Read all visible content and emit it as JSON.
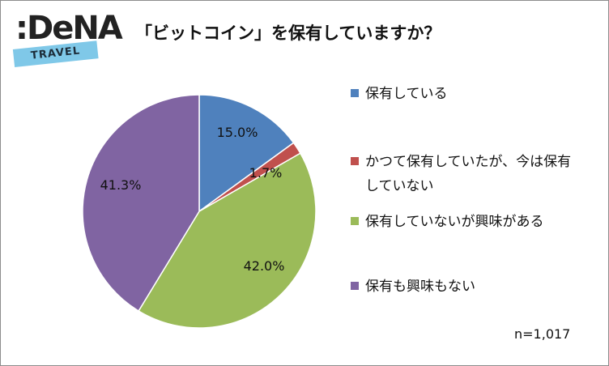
{
  "logo": {
    "main": ":DeNA",
    "sub": "TRAVEL"
  },
  "chart_data": {
    "type": "pie",
    "title": "「ビットコイン」を保有していますか？",
    "slices": [
      {
        "label": "保有している",
        "value": 15.0,
        "value_label": "15.0%",
        "color": "#4f81bd"
      },
      {
        "label": "かつて保有していたが、今は保有していない",
        "value": 1.7,
        "value_label": "1.7%",
        "color": "#c0504d"
      },
      {
        "label": "保有していないが興味がある",
        "value": 42.0,
        "value_label": "42.0%",
        "color": "#9bbb59"
      },
      {
        "label": "保有も興味もない",
        "value": 41.3,
        "value_label": "41.3%",
        "color": "#8064a2"
      }
    ],
    "legend_position": "right",
    "note": "n=1,017"
  }
}
